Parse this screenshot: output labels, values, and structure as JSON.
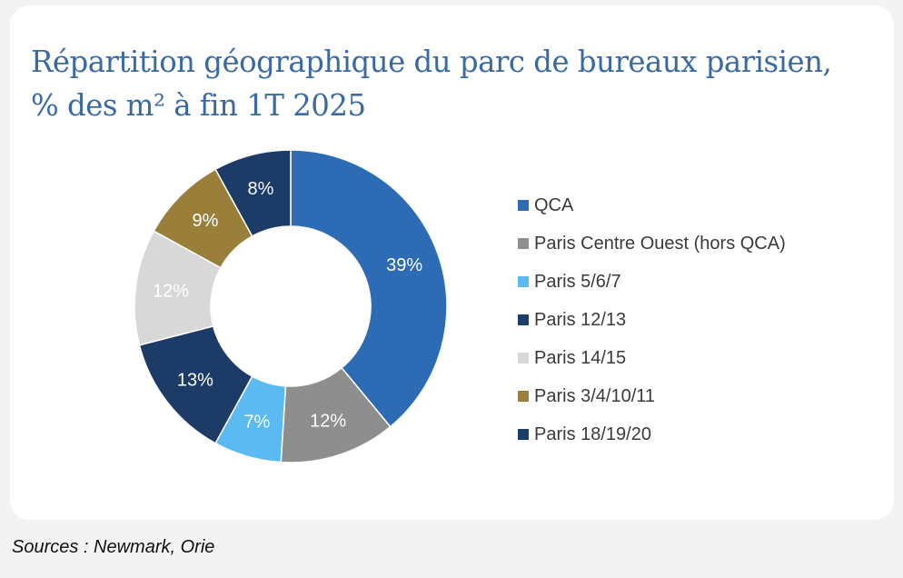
{
  "chart_data": {
    "type": "pie",
    "title_line1": "Répartition géographique du parc de bureaux parisien,",
    "title_line2": "% des m² à fin 1T 2025",
    "categories": [
      "QCA",
      "Paris Centre Ouest (hors QCA)",
      "Paris 5/6/7",
      "Paris 12/13",
      "Paris 14/15",
      "Paris 3/4/10/11",
      "Paris 18/19/20"
    ],
    "values": [
      39,
      12,
      7,
      13,
      12,
      9,
      8
    ],
    "data_labels": [
      "39%",
      "12%",
      "7%",
      "13%",
      "12%",
      "9%",
      "8%"
    ],
    "colors": [
      "#2e6bb5",
      "#8e8e8e",
      "#5bbaf2",
      "#1c3b67",
      "#d8d8d8",
      "#9a7f3a",
      "#1c3b67"
    ],
    "label_colors": [
      "#ffffff",
      "#ffffff",
      "#ffffff",
      "#ffffff",
      "#ffffff",
      "#ffffff",
      "#ffffff"
    ],
    "hole": "donut",
    "legend_position": "right",
    "start_angle": "top, clockwise"
  },
  "footer": {
    "source": "Sources : Newmark, Orie"
  }
}
